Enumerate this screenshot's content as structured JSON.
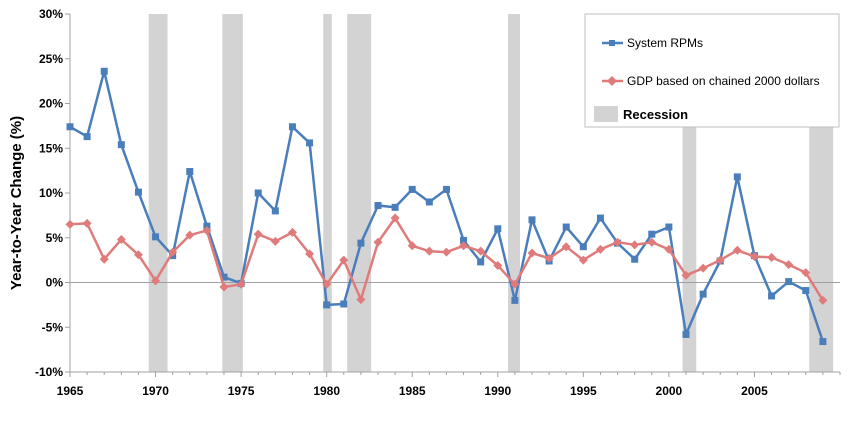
{
  "chart_data": {
    "type": "line",
    "title": "",
    "xlabel": "",
    "ylabel": "Year-to-Year Change (%)",
    "xlim": [
      1965,
      2010
    ],
    "ylim": [
      -10,
      30
    ],
    "x_ticks": [
      1965,
      1970,
      1975,
      1980,
      1985,
      1990,
      1995,
      2000,
      2005
    ],
    "y_ticks": [
      -10,
      -5,
      0,
      5,
      10,
      15,
      20,
      25,
      30
    ],
    "y_tick_labels": [
      "-10%",
      "-5%",
      "0%",
      "5%",
      "10%",
      "15%",
      "20%",
      "25%",
      "30%"
    ],
    "grid": false,
    "legend_position": "top-right",
    "series": [
      {
        "name": "System RPMs",
        "color": "#4a7ebb",
        "marker": "square",
        "x": [
          1965,
          1966,
          1967,
          1968,
          1969,
          1970,
          1971,
          1972,
          1973,
          1974,
          1975,
          1976,
          1977,
          1978,
          1979,
          1980,
          1981,
          1982,
          1983,
          1984,
          1985,
          1986,
          1987,
          1988,
          1989,
          1990,
          1991,
          1992,
          1993,
          1994,
          1995,
          1996,
          1997,
          1998,
          1999,
          2000,
          2001,
          2002,
          2003,
          2004,
          2005,
          2006,
          2007,
          2008,
          2009
        ],
        "values": [
          17.4,
          16.3,
          23.6,
          15.4,
          10.1,
          5.1,
          3.0,
          12.4,
          6.3,
          0.6,
          -0.1,
          10.0,
          8.0,
          17.4,
          15.6,
          -2.5,
          -2.4,
          4.4,
          8.6,
          8.4,
          10.4,
          9.0,
          10.4,
          4.7,
          2.3,
          6.0,
          -2.0,
          7.0,
          2.4,
          6.2,
          4.0,
          7.2,
          4.4,
          2.6,
          5.4,
          6.2,
          -5.8,
          -1.3,
          2.4,
          11.8,
          3.0,
          -1.5,
          0.1,
          -0.9,
          -6.6
        ]
      },
      {
        "name": "GDP based on chained 2000 dollars",
        "color": "#e07b7b",
        "marker": "diamond",
        "x": [
          1965,
          1966,
          1967,
          1968,
          1969,
          1970,
          1971,
          1972,
          1973,
          1974,
          1975,
          1976,
          1977,
          1978,
          1979,
          1980,
          1981,
          1982,
          1983,
          1984,
          1985,
          1986,
          1987,
          1988,
          1989,
          1990,
          1991,
          1992,
          1993,
          1994,
          1995,
          1996,
          1997,
          1998,
          1999,
          2000,
          2001,
          2002,
          2003,
          2004,
          2005,
          2006,
          2007,
          2008,
          2009
        ],
        "values": [
          6.5,
          6.6,
          2.6,
          4.8,
          3.1,
          0.2,
          3.4,
          5.3,
          5.8,
          -0.5,
          -0.2,
          5.4,
          4.6,
          5.6,
          3.2,
          -0.2,
          2.5,
          -1.9,
          4.5,
          7.2,
          4.1,
          3.5,
          3.4,
          4.1,
          3.5,
          1.9,
          -0.2,
          3.3,
          2.7,
          4.0,
          2.5,
          3.7,
          4.5,
          4.2,
          4.5,
          3.7,
          0.8,
          1.6,
          2.5,
          3.6,
          2.9,
          2.8,
          2.0,
          1.1,
          -2.0
        ]
      }
    ],
    "recessions": [
      {
        "start": 1969.6,
        "end": 1970.7
      },
      {
        "start": 1973.9,
        "end": 1975.1
      },
      {
        "start": 1979.8,
        "end": 1980.3
      },
      {
        "start": 1981.2,
        "end": 1982.6
      },
      {
        "start": 1990.6,
        "end": 1991.3
      },
      {
        "start": 2000.8,
        "end": 2001.6
      },
      {
        "start": 2008.2,
        "end": 2009.6
      }
    ],
    "recession_label": "Recession",
    "recession_color": "#d3d3d3",
    "axis_color": "#a0a0a0"
  }
}
